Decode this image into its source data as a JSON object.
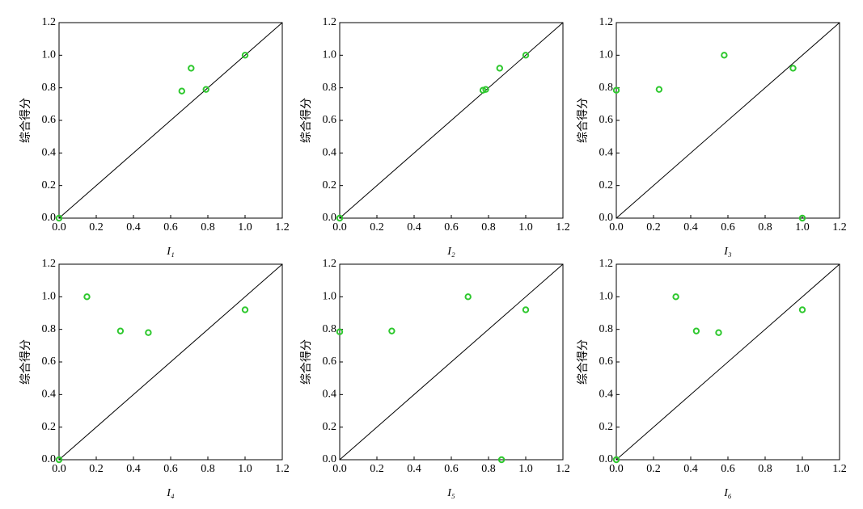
{
  "chart_data": [
    {
      "type": "scatter",
      "xlabel": "I₁",
      "ylabel": "综合得分",
      "color": "#2ec82e",
      "x": [
        0,
        0.66,
        0.71,
        0.79,
        1.0
      ],
      "values": [
        0,
        0.78,
        0.92,
        0.79,
        1.0
      ],
      "xlim": [
        0,
        1.2
      ],
      "ylim": [
        0,
        1.2
      ],
      "xticks": [
        {
          "value": 0,
          "label": "0.0"
        },
        0.2,
        0.4,
        0.6,
        0.8,
        {
          "value": 1,
          "label": "1.0"
        },
        1.2
      ],
      "yticks": [
        {
          "value": 0,
          "label": "0.0"
        },
        0.2,
        0.4,
        0.6,
        0.8,
        {
          "value": 1,
          "label": "1.0"
        },
        1.2
      ]
    },
    {
      "type": "scatter",
      "xlabel": "I₂",
      "ylabel": "综合得分",
      "color": "#2ec82e",
      "x": [
        0,
        0.77,
        0.785,
        0.86,
        1.0
      ],
      "values": [
        0,
        0.785,
        0.79,
        0.92,
        1.0
      ],
      "xlim": [
        0,
        1.2
      ],
      "ylim": [
        0,
        1.2
      ],
      "xticks": [
        {
          "value": 0,
          "label": "0.0"
        },
        0.2,
        0.4,
        0.6,
        0.8,
        {
          "value": 1,
          "label": "1.0"
        },
        1.2
      ],
      "yticks": [
        {
          "value": 0,
          "label": "0.0"
        },
        0.2,
        0.4,
        0.6,
        0.8,
        {
          "value": 1,
          "label": "1.0"
        },
        1.2
      ]
    },
    {
      "type": "scatter",
      "xlabel": "I₃",
      "ylabel": "综合得分",
      "color": "#2ec82e",
      "x": [
        0,
        0.23,
        0.58,
        0.95,
        1.0
      ],
      "values": [
        0.785,
        0.79,
        1.0,
        0.92,
        0
      ],
      "xlim": [
        0,
        1.2
      ],
      "ylim": [
        0,
        1.2
      ],
      "xticks": [
        {
          "value": 0,
          "label": "0.0"
        },
        0.2,
        0.4,
        0.6,
        0.8,
        {
          "value": 1,
          "label": "1.0"
        },
        1.2
      ],
      "yticks": [
        {
          "value": 0,
          "label": "0.0"
        },
        0.2,
        0.4,
        0.6,
        0.8,
        {
          "value": 1,
          "label": "1.0"
        },
        1.2
      ]
    },
    {
      "type": "scatter",
      "xlabel": "I₄",
      "ylabel": "综合得分",
      "color": "#2ec82e",
      "x": [
        0,
        0.15,
        0.33,
        0.48,
        1.0
      ],
      "values": [
        0,
        1.0,
        0.79,
        0.78,
        0.92
      ],
      "xlim": [
        0,
        1.2
      ],
      "ylim": [
        0,
        1.2
      ],
      "xticks": [
        {
          "value": 0,
          "label": "0.0"
        },
        0.2,
        0.4,
        0.6,
        0.8,
        {
          "value": 1,
          "label": "1.0"
        },
        1.2
      ],
      "yticks": [
        {
          "value": 0,
          "label": "0.0"
        },
        0.2,
        0.4,
        0.6,
        0.8,
        {
          "value": 1,
          "label": "1.0"
        },
        1.2
      ]
    },
    {
      "type": "scatter",
      "xlabel": "I₅",
      "ylabel": "综合得分",
      "color": "#2ec82e",
      "x": [
        0,
        0.28,
        0.69,
        1.0,
        0.87
      ],
      "values": [
        0.785,
        0.79,
        1.0,
        0.92,
        0
      ],
      "xlim": [
        0,
        1.2
      ],
      "ylim": [
        0,
        1.2
      ],
      "xticks": [
        {
          "value": 0,
          "label": "0.0"
        },
        0.2,
        0.4,
        0.6,
        0.8,
        {
          "value": 1,
          "label": "1.0"
        },
        1.2
      ],
      "yticks": [
        {
          "value": 0,
          "label": "0.0"
        },
        0.2,
        0.4,
        0.6,
        0.8,
        {
          "value": 1,
          "label": "1.0"
        },
        1.2
      ]
    },
    {
      "type": "scatter",
      "xlabel": "I₆",
      "ylabel": "综合得分",
      "color": "#2ec82e",
      "x": [
        0,
        0.32,
        0.43,
        0.55,
        1.0
      ],
      "values": [
        0,
        1.0,
        0.79,
        0.78,
        0.92
      ],
      "xlim": [
        0,
        1.2
      ],
      "ylim": [
        0,
        1.2
      ],
      "xticks": [
        {
          "value": 0,
          "label": "0.0"
        },
        0.2,
        0.4,
        0.6,
        0.8,
        {
          "value": 1,
          "label": "1.0"
        },
        1.2
      ],
      "yticks": [
        {
          "value": 0,
          "label": "0.0"
        },
        0.2,
        0.4,
        0.6,
        0.8,
        {
          "value": 1,
          "label": "1.0"
        },
        1.2
      ]
    }
  ]
}
